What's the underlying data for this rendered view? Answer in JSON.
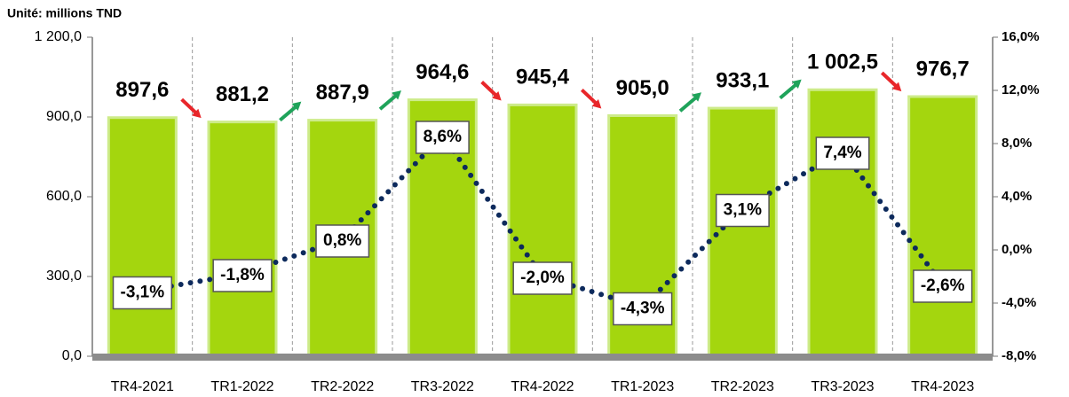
{
  "chart_data": {
    "type": "bar",
    "subtitle": "Unité: millions TND",
    "categories": [
      "TR4-2021",
      "TR1-2022",
      "TR2-2022",
      "TR3-2022",
      "TR4-2022",
      "TR1-2023",
      "TR2-2023",
      "TR3-2023",
      "TR4-2023"
    ],
    "series": [
      {
        "type": "bar",
        "color": "#a4d60e",
        "values": [
          897.6,
          881.2,
          887.9,
          964.6,
          945.4,
          905.0,
          933.1,
          1002.5,
          976.7
        ],
        "value_labels": [
          "897,6",
          "881,2",
          "887,9",
          "964,6",
          "945,4",
          "905,0",
          "933,1",
          "1 002,5",
          "976,7"
        ]
      },
      {
        "type": "line",
        "axis": "y2",
        "color": "#0d2a5c",
        "values": [
          -3.1,
          -1.8,
          0.8,
          8.6,
          -2.0,
          -4.3,
          3.1,
          7.4,
          -2.6
        ],
        "value_labels": [
          "-3,1%",
          "-1,8%",
          "0,8%",
          "8,6%",
          "-2,0%",
          "-4,3%",
          "3,1%",
          "7,4%",
          "-2,6%"
        ]
      }
    ],
    "ylim": [
      0,
      1200
    ],
    "yticks": [
      {
        "value": 0,
        "label": "0,0"
      },
      {
        "value": 300,
        "label": "300,0"
      },
      {
        "value": 600,
        "label": "600,0"
      },
      {
        "value": 900,
        "label": "900,0"
      },
      {
        "value": 1200,
        "label": "1 200,0"
      }
    ],
    "y2lim": [
      -8,
      16
    ],
    "y2ticks": [
      {
        "value": -8,
        "label": "-8,0%"
      },
      {
        "value": -4,
        "label": "-4,0%"
      },
      {
        "value": 0,
        "label": "0,0%"
      },
      {
        "value": 4,
        "label": "4,0%"
      },
      {
        "value": 8,
        "label": "8,0%"
      },
      {
        "value": 12,
        "label": "12,0%"
      },
      {
        "value": 16,
        "label": "16,0%"
      }
    ]
  }
}
